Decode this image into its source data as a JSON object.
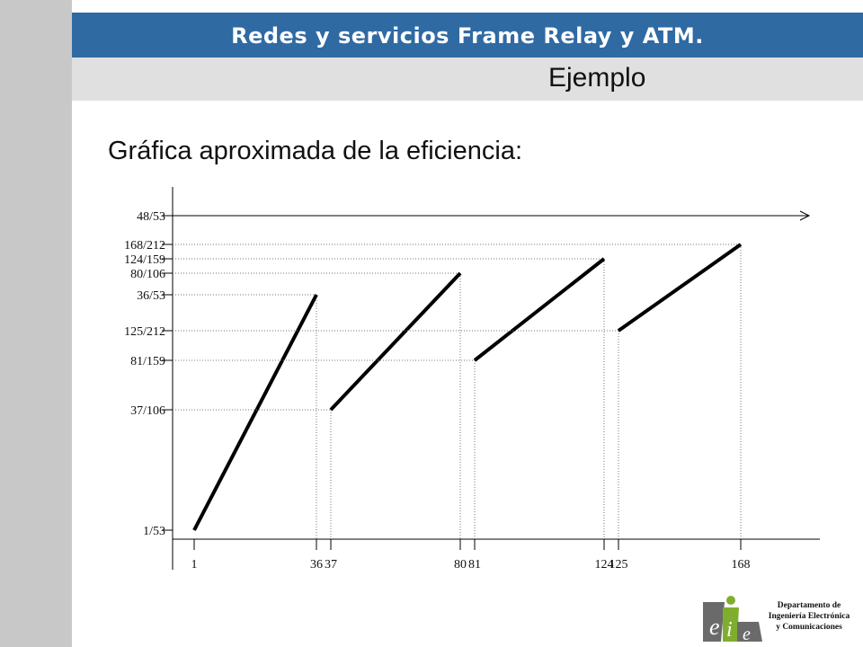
{
  "header": {
    "title": "Redes y servicios Frame Relay y ATM.",
    "subtitle": "Ejemplo"
  },
  "heading": "Gráfica aproximada de la eficiencia:",
  "footer": {
    "department_lines": [
      "Departamento de",
      "Ingeniería Electrónica",
      "y Comunicaciones"
    ],
    "logo_letters": [
      "e",
      "i",
      "e"
    ]
  },
  "colors": {
    "title_bar": "#2f6aa3",
    "subtitle_bar": "#e0e0e0",
    "left_strip": "#c8c8c8"
  },
  "chart_data": {
    "type": "line",
    "title": "",
    "xlabel": "",
    "ylabel": "",
    "x_ticks": [
      1,
      36,
      37,
      80,
      81,
      124,
      125,
      168
    ],
    "y_ticks": [
      {
        "label": "1/53",
        "value": 0.01887
      },
      {
        "label": "37/106",
        "value": 0.34906
      },
      {
        "label": "81/159",
        "value": 0.50943
      },
      {
        "label": "125/212",
        "value": 0.58962
      },
      {
        "label": "36/53",
        "value": 0.67925
      },
      {
        "label": "80/106",
        "value": 0.75472
      },
      {
        "label": "124/159",
        "value": 0.77987
      },
      {
        "label": "168/212",
        "value": 0.79245
      },
      {
        "label": "48/53",
        "value": 0.90566
      }
    ],
    "asymptote": {
      "label": "48/53",
      "value": 0.90566
    },
    "segments": [
      {
        "x": [
          1,
          36
        ],
        "y": [
          0.01887,
          0.67925
        ]
      },
      {
        "x": [
          37,
          80
        ],
        "y": [
          0.34906,
          0.75472
        ]
      },
      {
        "x": [
          81,
          124
        ],
        "y": [
          0.50943,
          0.77987
        ]
      },
      {
        "x": [
          125,
          168
        ],
        "y": [
          0.58962,
          0.79245
        ]
      }
    ],
    "grid": "dotted guide lines at segment ends"
  }
}
